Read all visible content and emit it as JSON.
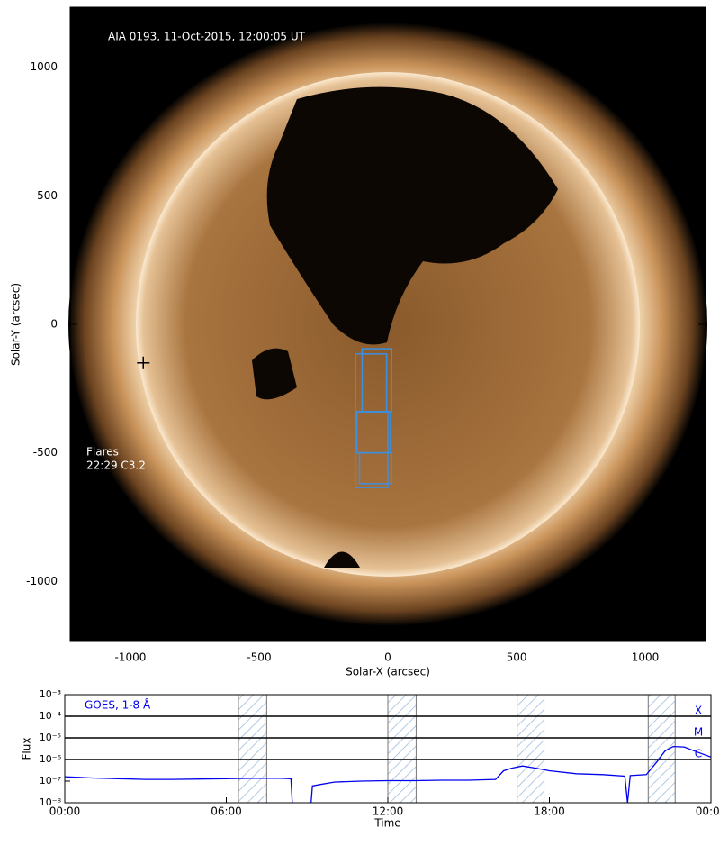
{
  "chart_data": [
    {
      "type": "image",
      "title": "AIA 0193, 11-Oct-2015, 12:00:05 UT",
      "x_label": "Solar-X (arcsec)",
      "y_label": "Solar-Y (arcsec)",
      "annotations": [
        "Flares",
        "22:29 C3.2"
      ],
      "xlim": [
        -1234,
        1234
      ],
      "ylim": [
        -1234,
        1234
      ],
      "xticks": [
        -1000,
        -500,
        0,
        500,
        1000
      ],
      "yticks": [
        -1000,
        -500,
        0,
        500,
        1000
      ],
      "marker": {
        "x": -950,
        "y": -150
      },
      "boxes": [
        {
          "x0": -125,
          "x1": -5,
          "y0": -340,
          "y1": -115
        },
        {
          "x0": -100,
          "x1": 15,
          "y0": -340,
          "y1": -95
        },
        {
          "x0": -120,
          "x1": 10,
          "y0": -500,
          "y1": -340
        },
        {
          "x0": -110,
          "x1": 15,
          "y0": -620,
          "y1": -500
        },
        {
          "x0": -125,
          "x1": 0,
          "y0": -635,
          "y1": -340
        }
      ],
      "box_color": "#3d8fe0"
    },
    {
      "type": "line",
      "x_label": "Time",
      "y_label": "Flux",
      "log_scale": true,
      "xlim": [
        0,
        24
      ],
      "ylim": [
        1e-08,
        0.001
      ],
      "xticks": [
        {
          "value": 0,
          "label": "00:00"
        },
        {
          "value": 6,
          "label": "06:00"
        },
        {
          "value": 12,
          "label": "12:00"
        },
        {
          "value": 18,
          "label": "18:00"
        },
        {
          "value": 24,
          "label": "00:00"
        }
      ],
      "yticks": [
        {
          "value": 1e-08,
          "label": "10⁻⁸"
        },
        {
          "value": 1e-07,
          "label": "10⁻⁷"
        },
        {
          "value": 1e-06,
          "label": "10⁻⁶"
        },
        {
          "value": 1e-05,
          "label": "10⁻⁵"
        },
        {
          "value": 0.0001,
          "label": "10⁻⁴"
        },
        {
          "value": 0.001,
          "label": "10⁻³"
        }
      ],
      "levels": [
        {
          "value": 0.0001,
          "label": "X"
        },
        {
          "value": 1e-05,
          "label": "M"
        },
        {
          "value": 1e-06,
          "label": "C"
        }
      ],
      "shaded": [
        [
          6.45,
          7.5
        ],
        [
          12,
          13.05
        ],
        [
          16.8,
          17.8
        ],
        [
          21.67,
          22.67
        ]
      ],
      "x": [
        0,
        0.5,
        1,
        2,
        3,
        4,
        5,
        6,
        7,
        8,
        8.4,
        8.45,
        8.8,
        9.15,
        9.2,
        9.5,
        10,
        11,
        12,
        13,
        14,
        15,
        16,
        16.3,
        16.6,
        17,
        17.5,
        18,
        19,
        20,
        20.8,
        20.9,
        21,
        21.6,
        22,
        22.3,
        22.6,
        23,
        23.5,
        24
      ],
      "series": [
        {
          "name": "GOES, 1-8 Å",
          "color": "#0000ee",
          "values": [
            1.6e-07,
            1.5e-07,
            1.4e-07,
            1.3e-07,
            1.2e-07,
            1.2e-07,
            1.25e-07,
            1.3e-07,
            1.35e-07,
            1.35e-07,
            1.3e-07,
            1e-08,
            null,
            1e-08,
            6e-08,
            7e-08,
            9e-08,
            1e-07,
            1.05e-07,
            1.05e-07,
            1.1e-07,
            1.1e-07,
            1.2e-07,
            3e-07,
            4e-07,
            5e-07,
            4e-07,
            3e-07,
            2.2e-07,
            2e-07,
            1.7e-07,
            1e-08,
            1.8e-07,
            2e-07,
            8e-07,
            2.5e-06,
            4e-06,
            3.8e-06,
            2.2e-06,
            1.3e-06
          ]
        }
      ]
    }
  ]
}
